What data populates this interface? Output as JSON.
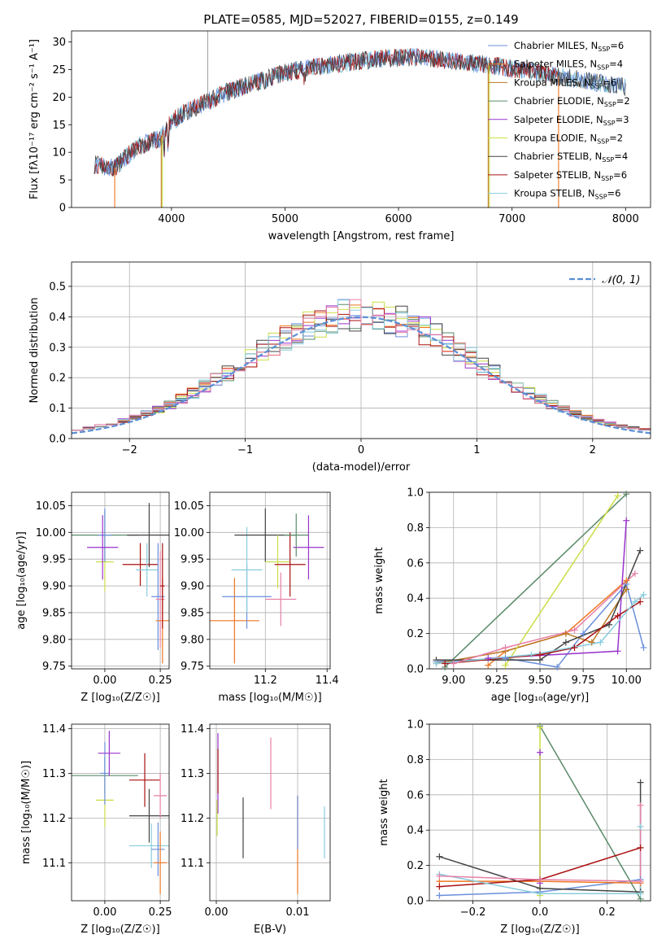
{
  "colors": {
    "chabrier_miles": "#6a8fdc",
    "salpeter_miles": "#ee7722",
    "kroupa_miles": "#bb7722",
    "chabrier_elodie": "#5a8a6a",
    "salpeter_elodie": "#9933cc",
    "kroupa_elodie": "#ccdd44",
    "chabrier_stelib": "#444444",
    "salpeter_stelib": "#aa1111",
    "kroupa_stelib": "#88ccdd",
    "pink": "#e680a8",
    "normal": "#5b8fd6",
    "grid": "#b0b0b0"
  },
  "chart_data": [
    {
      "id": "spectrum",
      "type": "line",
      "title": "PLATE=0585, MJD=52027, FIBERID=0155, z=0.149",
      "xlabel": "wavelength [Angstrom, rest frame]",
      "ylabel": "Flux [fλ10⁻¹⁷ erg cm⁻² s⁻¹ A⁻¹]",
      "xlim": [
        3120,
        8220
      ],
      "ylim": [
        0,
        32
      ],
      "xticks": [
        4000,
        5000,
        6000,
        7000,
        8000
      ],
      "yticks": [
        0,
        5,
        10,
        15,
        20,
        25,
        30
      ],
      "grid": false,
      "legend_position": "top-right",
      "continuum": {
        "x": [
          3320,
          3500,
          3700,
          3900,
          3950,
          4000,
          4100,
          4300,
          4500,
          4800,
          5000,
          5300,
          5600,
          5900,
          6200,
          6500,
          6700,
          6900,
          7200,
          7500,
          7800,
          8000
        ],
        "y": [
          7.8,
          7.2,
          11.0,
          12.5,
          14.0,
          15.5,
          17.0,
          19.0,
          21.0,
          23.0,
          24.5,
          25.5,
          26.5,
          27.0,
          27.3,
          26.5,
          26.0,
          25.5,
          24.5,
          23.5,
          22.5,
          22.0
        ]
      },
      "legend": [
        {
          "label": "Chabrier MILES, N",
          "sub": "SSP",
          "suffix": "=6",
          "color": "#6a8fdc"
        },
        {
          "label": "Salpeter MILES, N",
          "sub": "SSP",
          "suffix": "=4",
          "color": "#ee7722"
        },
        {
          "label": "Kroupa MILES, N",
          "sub": "SSP",
          "suffix": "=6",
          "color": "#bb7722"
        },
        {
          "label": "Chabrier ELODIE, N",
          "sub": "SSP",
          "suffix": "=2",
          "color": "#5a8a6a"
        },
        {
          "label": "Salpeter ELODIE, N",
          "sub": "SSP",
          "suffix": "=3",
          "color": "#9933cc"
        },
        {
          "label": "Kroupa ELODIE, N",
          "sub": "SSP",
          "suffix": "=2",
          "color": "#ccdd44"
        },
        {
          "label": "Chabrier STELIB, N",
          "sub": "SSP",
          "suffix": "=4",
          "color": "#444444"
        },
        {
          "label": "Salpeter STELIB, N",
          "sub": "SSP",
          "suffix": "=6",
          "color": "#aa1111"
        },
        {
          "label": "Kroupa STELIB, N",
          "sub": "SSP",
          "suffix": "=6",
          "color": "#88ccdd"
        }
      ]
    },
    {
      "id": "residuals",
      "type": "bar",
      "xlabel": "(data-model)/error",
      "ylabel": "Normed distribution",
      "xlim": [
        -2.5,
        2.5
      ],
      "ylim": [
        0,
        0.58
      ],
      "xticks": [
        -2,
        -1,
        0,
        1,
        2
      ],
      "yticks": [
        0.0,
        0.1,
        0.2,
        0.3,
        0.4,
        0.5
      ],
      "grid": true,
      "bin_width": 0.1,
      "legend": [
        {
          "label": "𝒩(0, 1)",
          "color": "#5b8fd6",
          "style": "dashed"
        }
      ],
      "legend_position": "top-right"
    },
    {
      "id": "age_vs_Z",
      "type": "scatter",
      "xlabel": "Z [log₁₀(Z/Z☉)]",
      "ylabel": "age  [log₁₀(age/yr)]",
      "xlim": [
        -0.15,
        0.29
      ],
      "ylim": [
        9.745,
        10.075
      ],
      "xticks": [
        0.0,
        0.25
      ],
      "yticks": [
        9.75,
        9.8,
        9.85,
        9.9,
        9.95,
        10.0,
        10.05
      ],
      "grid": true,
      "points": [
        {
          "x": 0.0,
          "y": 9.995,
          "xerr": 0.15,
          "yerr": 0.045,
          "color": "#5a8a6a"
        },
        {
          "x": 0.0,
          "y": 9.945,
          "xerr": 0.04,
          "yerr": 0.055,
          "color": "#ccdd44"
        },
        {
          "x": 0.0,
          "y": 9.995,
          "xerr": 0.03,
          "yerr": 0.05,
          "color": "#6a8fdc"
        },
        {
          "x": -0.01,
          "y": 9.972,
          "xerr": 0.07,
          "yerr": 0.06,
          "color": "#9933cc"
        },
        {
          "x": 0.2,
          "y": 9.995,
          "xerr": 0.1,
          "yerr": 0.06,
          "color": "#444444"
        },
        {
          "x": 0.16,
          "y": 9.94,
          "xerr": 0.08,
          "yerr": 0.04,
          "color": "#aa1111"
        },
        {
          "x": 0.19,
          "y": 9.93,
          "xerr": 0.05,
          "yerr": 0.05,
          "color": "#88ccdd"
        },
        {
          "x": 0.24,
          "y": 9.88,
          "xerr": 0.03,
          "yerr": 0.1,
          "color": "#6a8fdc"
        },
        {
          "x": 0.25,
          "y": 9.875,
          "xerr": 0.02,
          "yerr": 0.09,
          "color": "#e680a8"
        },
        {
          "x": 0.26,
          "y": 9.835,
          "xerr": 0.03,
          "yerr": 0.08,
          "color": "#ee7722"
        },
        {
          "x": 0.26,
          "y": 9.9,
          "xerr": 0.01,
          "yerr": 0.08,
          "color": "#aa1111"
        }
      ]
    },
    {
      "id": "age_vs_mass",
      "type": "scatter",
      "xlabel": "mass [log₁₀(M/M☉)]",
      "ylabel": "",
      "xlim": [
        11.02,
        11.41
      ],
      "ylim": [
        9.745,
        10.075
      ],
      "xticks": [
        11.2,
        11.4
      ],
      "yticks": [
        9.75,
        9.8,
        9.85,
        9.9,
        9.95,
        10.0,
        10.05
      ],
      "grid": true,
      "points": [
        {
          "x": 11.1,
          "y": 9.835,
          "xerr": 0.08,
          "yerr": 0.08,
          "color": "#ee7722"
        },
        {
          "x": 11.14,
          "y": 9.88,
          "xerr": 0.08,
          "yerr": 0.06,
          "color": "#6a8fdc"
        },
        {
          "x": 11.14,
          "y": 9.93,
          "xerr": 0.05,
          "yerr": 0.08,
          "color": "#88ccdd"
        },
        {
          "x": 11.2,
          "y": 9.995,
          "xerr": 0.1,
          "yerr": 0.05,
          "color": "#444444"
        },
        {
          "x": 11.24,
          "y": 9.945,
          "xerr": 0.04,
          "yerr": 0.05,
          "color": "#ccdd44"
        },
        {
          "x": 11.25,
          "y": 9.875,
          "xerr": 0.05,
          "yerr": 0.05,
          "color": "#e680a8"
        },
        {
          "x": 11.28,
          "y": 9.94,
          "xerr": 0.05,
          "yerr": 0.06,
          "color": "#aa1111"
        },
        {
          "x": 11.34,
          "y": 9.972,
          "xerr": 0.05,
          "yerr": 0.06,
          "color": "#9933cc"
        },
        {
          "x": 11.3,
          "y": 9.995,
          "xerr": 0.04,
          "yerr": 0.04,
          "color": "#5a8a6a"
        }
      ]
    },
    {
      "id": "weight_vs_age",
      "type": "line",
      "xlabel": "age  [log₁₀(age/yr)]",
      "ylabel": "mass weight",
      "xlim": [
        8.86,
        10.14
      ],
      "ylim": [
        0,
        1.0
      ],
      "xticks": [
        9.0,
        9.25,
        9.5,
        9.75,
        10.0
      ],
      "yticks": [
        0.0,
        0.2,
        0.4,
        0.6,
        0.8,
        1.0
      ],
      "grid": true,
      "series": [
        {
          "color": "#6a8fdc",
          "x": [
            8.9,
            9.3,
            9.6,
            9.75,
            10.0,
            10.1
          ],
          "y": [
            0.04,
            0.06,
            0.01,
            0.2,
            0.48,
            0.12
          ]
        },
        {
          "color": "#ee7722",
          "x": [
            9.2,
            9.3,
            9.65,
            10.0
          ],
          "y": [
            0.02,
            0.1,
            0.2,
            0.5
          ]
        },
        {
          "color": "#bb7722",
          "x": [
            8.9,
            9.3,
            9.65,
            9.8,
            10.0
          ],
          "y": [
            0.03,
            0.1,
            0.2,
            0.15,
            0.45
          ]
        },
        {
          "color": "#5a8a6a",
          "x": [
            8.95,
            10.0
          ],
          "y": [
            0.01,
            0.99
          ]
        },
        {
          "color": "#9933cc",
          "x": [
            9.2,
            9.95,
            10.0
          ],
          "y": [
            0.06,
            0.1,
            0.84
          ]
        },
        {
          "color": "#ccdd44",
          "x": [
            9.3,
            9.95
          ],
          "y": [
            0.02,
            0.98
          ]
        },
        {
          "color": "#444444",
          "x": [
            8.9,
            9.5,
            9.65,
            9.9,
            10.08
          ],
          "y": [
            0.05,
            0.05,
            0.15,
            0.25,
            0.67
          ]
        },
        {
          "color": "#aa1111",
          "x": [
            8.95,
            9.5,
            9.7,
            9.95,
            10.08
          ],
          "y": [
            0.03,
            0.08,
            0.12,
            0.3,
            0.38
          ]
        },
        {
          "color": "#88ccdd",
          "x": [
            8.9,
            9.45,
            9.85,
            10.05,
            10.1
          ],
          "y": [
            0.03,
            0.08,
            0.15,
            0.38,
            0.42
          ]
        },
        {
          "color": "#e680a8",
          "x": [
            9.0,
            9.3,
            9.7,
            10.05
          ],
          "y": [
            0.03,
            0.12,
            0.22,
            0.54
          ]
        }
      ]
    },
    {
      "id": "mass_vs_Z",
      "type": "scatter",
      "xlabel": "Z [log₁₀(Z/Z☉)]",
      "ylabel": "mass [log₁₀(M/M☉)]",
      "xlim": [
        -0.15,
        0.29
      ],
      "ylim": [
        11.015,
        11.41
      ],
      "xticks": [
        0.0,
        0.25
      ],
      "yticks": [
        11.1,
        11.2,
        11.3,
        11.4
      ],
      "grid": true,
      "points": [
        {
          "x": 0.0,
          "y": 11.295,
          "xerr": 0.15,
          "yerr": 0.04,
          "color": "#5a8a6a"
        },
        {
          "x": 0.0,
          "y": 11.24,
          "xerr": 0.04,
          "yerr": 0.06,
          "color": "#ccdd44"
        },
        {
          "x": 0.0,
          "y": 11.3,
          "xerr": 0.02,
          "yerr": 0.07,
          "color": "#6a8fdc"
        },
        {
          "x": 0.02,
          "y": 11.345,
          "xerr": 0.05,
          "yerr": 0.05,
          "color": "#9933cc"
        },
        {
          "x": 0.18,
          "y": 11.285,
          "xerr": 0.07,
          "yerr": 0.06,
          "color": "#aa1111"
        },
        {
          "x": 0.2,
          "y": 11.205,
          "xerr": 0.09,
          "yerr": 0.06,
          "color": "#444444"
        },
        {
          "x": 0.21,
          "y": 11.138,
          "xerr": 0.1,
          "yerr": 0.05,
          "color": "#88ccdd"
        },
        {
          "x": 0.25,
          "y": 11.25,
          "xerr": 0.03,
          "yerr": 0.05,
          "color": "#e680a8"
        },
        {
          "x": 0.24,
          "y": 11.13,
          "xerr": 0.03,
          "yerr": 0.06,
          "color": "#6a8fdc"
        },
        {
          "x": 0.25,
          "y": 11.1,
          "xerr": 0.03,
          "yerr": 0.07,
          "color": "#ee7722"
        }
      ]
    },
    {
      "id": "mass_vs_ebv",
      "type": "scatter",
      "xlabel": "E(B-V)",
      "ylabel": "",
      "xlim": [
        -0.0008,
        0.014
      ],
      "ylim": [
        11.015,
        11.41
      ],
      "xticks": [
        0.0,
        0.01
      ],
      "yticks": [
        11.1,
        11.2,
        11.3,
        11.4
      ],
      "grid": true,
      "points": [
        {
          "x": 0.0002,
          "y": 11.3,
          "yerr": 0.09,
          "color": "#9933cc"
        },
        {
          "x": 0.0002,
          "y": 11.305,
          "yerr": 0.05,
          "color": "#aa1111"
        },
        {
          "x": 0.0001,
          "y": 11.2,
          "yerr": 0.04,
          "color": "#ccdd44"
        },
        {
          "x": 0.0033,
          "y": 11.178,
          "yerr": 0.068,
          "color": "#444444"
        },
        {
          "x": 0.0067,
          "y": 11.3,
          "yerr": 0.08,
          "color": "#e680a8"
        },
        {
          "x": 0.01,
          "y": 11.14,
          "yerr": 0.11,
          "color": "#ee7722"
        },
        {
          "x": 0.01,
          "y": 11.19,
          "yerr": 0.06,
          "color": "#6a8fdc"
        },
        {
          "x": 0.0133,
          "y": 11.168,
          "yerr": 0.058,
          "color": "#88ccdd"
        }
      ]
    },
    {
      "id": "weight_vs_Z",
      "type": "line",
      "xlabel": "Z [log₁₀(Z/Z☉)]",
      "ylabel": "mass weight",
      "xlim": [
        -0.33,
        0.33
      ],
      "ylim": [
        0,
        1.0
      ],
      "xticks": [
        -0.2,
        0.0,
        0.2
      ],
      "yticks": [
        0.0,
        0.2,
        0.4,
        0.6,
        0.8,
        1.0
      ],
      "grid": true,
      "series": [
        {
          "color": "#6a8fdc",
          "x": [
            -0.3,
            0.0,
            0.3
          ],
          "y": [
            0.03,
            0.05,
            0.12
          ]
        },
        {
          "color": "#ee7722",
          "x": [
            -0.3,
            0.0,
            0.3
          ],
          "y": [
            0.11,
            0.11,
            0.1
          ]
        },
        {
          "color": "#5a8a6a",
          "x": [
            0.0,
            0.3
          ],
          "y": [
            0.99,
            0.01
          ]
        },
        {
          "color": "#9933cc",
          "x": [
            0.0,
            0.0
          ],
          "y": [
            0.1,
            0.84
          ]
        },
        {
          "color": "#ccdd44",
          "x": [
            0.0,
            0.0
          ],
          "y": [
            0.03,
            0.98
          ]
        },
        {
          "color": "#444444",
          "x": [
            -0.3,
            0.0,
            0.3,
            0.3
          ],
          "y": [
            0.25,
            0.07,
            0.05,
            0.67
          ]
        },
        {
          "color": "#aa1111",
          "x": [
            -0.3,
            0.0,
            0.3
          ],
          "y": [
            0.08,
            0.12,
            0.3
          ]
        },
        {
          "color": "#88ccdd",
          "x": [
            -0.3,
            0.0,
            0.3,
            0.3
          ],
          "y": [
            0.15,
            0.04,
            0.04,
            0.42
          ]
        },
        {
          "color": "#e680a8",
          "x": [
            -0.3,
            0.0,
            0.3,
            0.3
          ],
          "y": [
            0.14,
            0.12,
            0.11,
            0.54
          ]
        }
      ]
    }
  ]
}
